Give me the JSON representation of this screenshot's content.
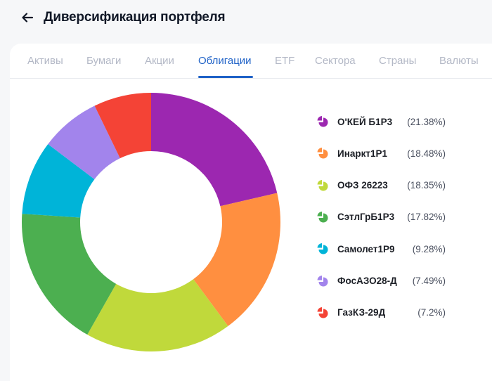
{
  "header": {
    "back_icon": "arrow-left-icon",
    "title": "Диверсификация портфеля"
  },
  "tabs": [
    {
      "label": "Активы",
      "active": false
    },
    {
      "label": "Бумаги",
      "active": false
    },
    {
      "label": "Акции",
      "active": false
    },
    {
      "label": "Облигации",
      "active": true
    },
    {
      "label": "ETF",
      "active": false
    },
    {
      "label": "Сектора",
      "active": false
    },
    {
      "label": "Страны",
      "active": false
    },
    {
      "label": "Валюты",
      "active": false
    }
  ],
  "legend": [
    {
      "label": "О'КЕЙ Б1Р3",
      "value": "(21.38%)",
      "color": "#9c27b0"
    },
    {
      "label": "Инаркт1Р1",
      "value": "(18.48%)",
      "color": "#ff8f40"
    },
    {
      "label": "ОФЗ 26223",
      "value": "(18.35%)",
      "color": "#c0d93b"
    },
    {
      "label": "СэтлГрБ1Р3",
      "value": "(17.82%)",
      "color": "#4caf50"
    },
    {
      "label": "Самолет1Р9",
      "value": "(9.28%)",
      "color": "#00b4d8"
    },
    {
      "label": "ФосАЗО28-Д",
      "value": "(7.49%)",
      "color": "#a284ec"
    },
    {
      "label": "ГазКЗ-29Д",
      "value": "(7.2%)",
      "color": "#f44336"
    }
  ],
  "chart_data": {
    "type": "pie",
    "variant": "donut",
    "title": "Диверсификация портфеля — Облигации",
    "categories": [
      "О'КЕЙ Б1Р3",
      "Инаркт1Р1",
      "ОФЗ 26223",
      "СэтлГрБ1Р3",
      "Самолет1Р9",
      "ФосАЗО28-Д",
      "ГазКЗ-29Д"
    ],
    "values": [
      21.38,
      18.48,
      18.35,
      17.82,
      9.28,
      7.49,
      7.2
    ],
    "colors": [
      "#9c27b0",
      "#ff8f40",
      "#c0d93b",
      "#4caf50",
      "#00b4d8",
      "#a284ec",
      "#f44336"
    ],
    "start_angle": "12 o'clock, clockwise",
    "legend_position": "right"
  }
}
